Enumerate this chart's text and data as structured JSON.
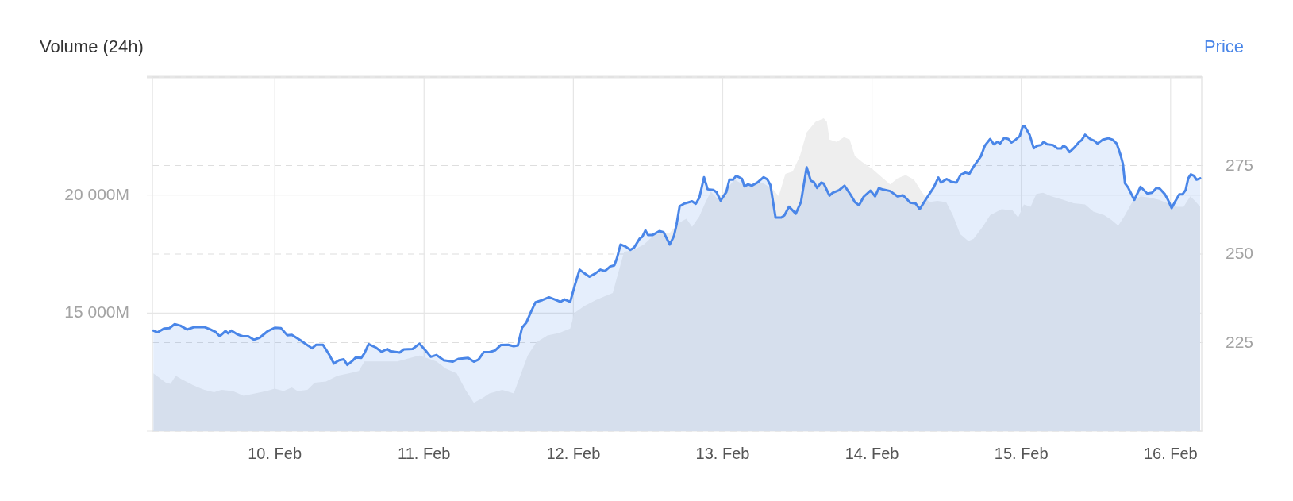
{
  "chart_data": {
    "type": "area",
    "ylabel": "Volume (24h)",
    "y2label": "Price",
    "xlim": [
      "--02-09T04:20",
      "--02-16T05:00"
    ],
    "xticks": [
      {
        "value": "--02-10",
        "label": "10. Feb"
      },
      {
        "value": "--02-11",
        "label": "11. Feb"
      },
      {
        "value": "--02-12",
        "label": "12. Feb"
      },
      {
        "value": "--02-13",
        "label": "13. Feb"
      },
      {
        "value": "--02-14",
        "label": "14. Feb"
      },
      {
        "value": "--02-15",
        "label": "15. Feb"
      },
      {
        "value": "--02-16",
        "label": "16. Feb"
      }
    ],
    "ylim": [
      10000,
      25000
    ],
    "yticks": [
      {
        "value": 10000,
        "label": null
      },
      {
        "value": 15000,
        "label": "15 000M"
      },
      {
        "value": 20000,
        "label": "20 000M"
      },
      {
        "value": 25000,
        "label": null
      }
    ],
    "y2lim": [
      200,
      300
    ],
    "y2ticks": [
      {
        "value": 200,
        "label": null
      },
      225,
      250,
      275,
      {
        "value": 300,
        "label": null
      }
    ],
    "grid": true,
    "series": [
      {
        "color": "#eeeeee",
        "x": [
          "--02-09T04:30",
          "--02-09T06:30",
          "--02-09T07:15",
          "--02-09T08:05",
          "--02-09T09:00",
          "--02-09T10:50",
          "--02-09T12:40",
          "--02-09T14:15",
          "--02-09T15:25",
          "--02-09T17:15",
          "--02-09T19:00",
          "--02-09T20:50",
          "--02-09T22:40",
          "--02-10T00:00",
          "--02-10T01:25",
          "--02-10T02:45",
          "--02-10T03:40",
          "--02-10T05:15",
          "--02-10T06:25",
          "--02-10T08:15",
          "--02-10T10:05",
          "--02-10T11:55",
          "--02-10T13:30",
          "--02-10T14:25",
          "--02-10T16:25",
          "--02-10T19:40",
          "--02-10T23:15",
          "--02-11T02:00",
          "--02-11T03:30",
          "--02-11T05:15",
          "--02-11T06:40",
          "--02-11T08:00",
          "--02-11T09:25",
          "--02-11T10:30",
          "--02-11T12:35",
          "--02-11T14:25",
          "--02-11T15:20",
          "--02-11T16:40",
          "--02-11T18:00",
          "--02-11T19:50",
          "--02-11T21:40",
          "--02-11T23:30",
          "--02-12T00:10",
          "--02-12T01:45",
          "--02-12T03:35",
          "--02-12T05:25",
          "--02-12T06:20",
          "--02-12T07:00",
          "--02-12T08:10",
          "--02-12T09:30",
          "--02-12T11:20",
          "--02-12T13:10",
          "--02-12T15:30",
          "--02-12T16:50",
          "--02-12T18:10",
          "--02-12T19:05",
          "--02-12T20:15",
          "--02-12T21:10",
          "--02-12T22:05",
          "--02-12T23:10",
          "--02-13T00:35",
          "--02-13T01:55",
          "--02-13T03:15",
          "--02-13T06:30",
          "--02-13T08:05",
          "--02-13T09:00",
          "--02-13T10:05",
          "--02-13T11:15",
          "--02-13T12:25",
          "--02-13T13:30",
          "--02-13T14:55",
          "--02-13T16:15",
          "--02-13T16:45",
          "--02-13T17:10",
          "--02-13T18:20",
          "--02-13T19:30",
          "--02-13T20:25",
          "--02-13T21:15",
          "--02-13T22:25",
          "--02-14T00:05",
          "--02-14T01:35",
          "--02-14T02:55",
          "--02-14T04:05",
          "--02-14T05:25",
          "--02-14T06:45",
          "--02-14T07:50",
          "--02-14T09:10",
          "--02-14T10:30",
          "--02-14T11:55",
          "--02-14T13:00",
          "--02-14T14:10",
          "--02-14T15:30",
          "--02-14T16:20",
          "--02-14T17:55",
          "--02-14T19:00",
          "--02-14T20:50",
          "--02-14T22:35",
          "--02-14T23:30",
          "--02-15T00:25",
          "--02-15T01:30",
          "--02-15T02:25",
          "--02-15T03:30",
          "--02-15T04:50",
          "--02-15T06:40",
          "--02-15T08:25",
          "--02-15T10:15",
          "--02-15T11:35",
          "--02-15T13:20",
          "--02-15T14:30",
          "--02-15T15:35",
          "--02-15T16:40",
          "--02-15T17:50",
          "--02-15T19:10",
          "--02-15T20:30",
          "--02-15T22:05",
          "--02-15T23:35",
          "--02-16T00:55",
          "--02-16T02:05",
          "--02-16T03:10",
          "--02-16T03:55",
          "--02-16T04:45"
        ],
        "values": [
          12450,
          12050,
          12000,
          12350,
          12200,
          11950,
          11750,
          11650,
          11750,
          11700,
          11500,
          11600,
          11700,
          11800,
          11700,
          11850,
          11700,
          11750,
          12050,
          12100,
          12350,
          12450,
          12550,
          12950,
          12950,
          12950,
          13200,
          12950,
          12650,
          12450,
          11750,
          11200,
          11400,
          11600,
          11750,
          11600,
          12250,
          13200,
          13750,
          14050,
          14150,
          14350,
          15000,
          15300,
          15550,
          15750,
          15850,
          16500,
          17600,
          17650,
          17900,
          18350,
          18400,
          18800,
          19000,
          18650,
          19100,
          19650,
          20150,
          19850,
          20250,
          20650,
          20450,
          20500,
          20250,
          19950,
          20900,
          21000,
          21650,
          22650,
          23100,
          23250,
          23100,
          22350,
          22250,
          22450,
          22350,
          21650,
          21400,
          21100,
          20750,
          20450,
          20700,
          20850,
          20650,
          20200,
          19700,
          19750,
          19700,
          19150,
          18350,
          18050,
          18150,
          18700,
          19150,
          19400,
          19350,
          19050,
          19600,
          19500,
          20050,
          20100,
          19950,
          19800,
          19650,
          19600,
          19300,
          19150,
          18950,
          18700,
          19150,
          19700,
          19950,
          19900,
          19800,
          19650,
          19500,
          19500,
          19950,
          19750,
          19500
        ]
      },
      {
        "axis": "y2",
        "color": "#4a86e8",
        "x": [
          "--02-09T04:30",
          "--02-09T05:10",
          "--02-09T06:15",
          "--02-09T07:05",
          "--02-09T07:55",
          "--02-09T08:50",
          "--02-09T09:55",
          "--02-09T11:05",
          "--02-09T12:40",
          "--02-09T13:35",
          "--02-09T14:30",
          "--02-09T15:10",
          "--02-09T16:05",
          "--02-09T16:30",
          "--02-09T17:00",
          "--02-09T17:55",
          "--02-09T18:50",
          "--02-09T19:45",
          "--02-09T20:40",
          "--02-09T21:35",
          "--02-09T22:55",
          "--02-10T00:00",
          "--02-10T01:00",
          "--02-10T02:00",
          "--02-10T02:45",
          "--02-10T04:10",
          "--02-10T04:50",
          "--02-10T06:00",
          "--02-10T06:40",
          "--02-10T07:45",
          "--02-10T08:45",
          "--02-10T09:30",
          "--02-10T10:20",
          "--02-10T11:05",
          "--02-10T11:40",
          "--02-10T12:35",
          "--02-10T13:00",
          "--02-10T13:55",
          "--02-10T14:25",
          "--02-10T15:05",
          "--02-10T16:15",
          "--02-10T17:10",
          "--02-10T18:05",
          "--02-10T18:30",
          "--02-10T20:05",
          "--02-10T20:45",
          "--02-10T22:10",
          "--02-10T23:15",
          "--02-11T00:25",
          "--02-11T01:05",
          "--02-11T02:00",
          "--02-11T03:10",
          "--02-11T04:35",
          "--02-11T05:30",
          "--02-11T07:05",
          "--02-11T08:00",
          "--02-11T08:45",
          "--02-11T09:35",
          "--02-11T10:30",
          "--02-11T11:25",
          "--02-11T12:20",
          "--02-11T13:30",
          "--02-11T14:25",
          "--02-11T15:05",
          "--02-11T15:45",
          "--02-11T16:25",
          "--02-11T17:10",
          "--02-11T17:55",
          "--02-11T19:00",
          "--02-11T20:05",
          "--02-11T21:00",
          "--02-11T21:55",
          "--02-11T22:35",
          "--02-11T23:30",
          "--02-12T00:10",
          "--02-12T01:00",
          "--02-12T01:45",
          "--02-12T02:35",
          "--02-12T03:35",
          "--02-12T04:20",
          "--02-12T05:05",
          "--02-12T05:55",
          "--02-12T06:35",
          "--02-12T07:00",
          "--02-12T07:35",
          "--02-12T08:25",
          "--02-12T09:10",
          "--02-12T09:45",
          "--02-12T10:40",
          "--02-12T11:05",
          "--02-12T11:35",
          "--02-12T12:00",
          "--02-12T12:45",
          "--02-12T13:50",
          "--02-12T14:30",
          "--02-12T15:30",
          "--02-12T16:10",
          "--02-12T16:35",
          "--02-12T17:05",
          "--02-12T17:45",
          "--02-12T19:05",
          "--02-12T19:40",
          "--02-12T20:15",
          "--02-12T21:00",
          "--02-12T21:35",
          "--02-12T22:30",
          "--02-12T23:00",
          "--02-12T23:40",
          "--02-13T00:35",
          "--02-13T01:05",
          "--02-13T01:40",
          "--02-13T02:10",
          "--02-13T03:05",
          "--02-13T03:30",
          "--02-13T04:05",
          "--02-13T04:40",
          "--02-13T05:35",
          "--02-13T06:35",
          "--02-13T07:10",
          "--02-13T07:40",
          "--02-13T08:30",
          "--02-13T09:25",
          "--02-13T09:55",
          "--02-13T10:40",
          "--02-13T11:45",
          "--02-13T12:35",
          "--02-13T13:30",
          "--02-13T14:10",
          "--02-13T14:40",
          "--02-13T15:10",
          "--02-13T15:50",
          "--02-13T16:15",
          "--02-13T17:10",
          "--02-13T17:40",
          "--02-13T18:45",
          "--02-13T19:35",
          "--02-13T20:35",
          "--02-13T21:15",
          "--02-13T21:55",
          "--02-13T22:40",
          "--02-13T23:45",
          "--02-14T00:30",
          "--02-14T01:05",
          "--02-14T01:50",
          "--02-14T02:55",
          "--02-14T04:05",
          "--02-14T05:00",
          "--02-14T06:10",
          "--02-14T07:00",
          "--02-14T07:40",
          "--02-14T08:45",
          "--02-14T09:55",
          "--02-14T10:40",
          "--02-14T11:05",
          "--02-14T12:00",
          "--02-14T12:45",
          "--02-14T13:35",
          "--02-14T14:15",
          "--02-14T15:00",
          "--02-14T15:40",
          "--02-14T16:20",
          "--02-14T17:30",
          "--02-14T18:10",
          "--02-14T19:00",
          "--02-14T19:35",
          "--02-14T20:10",
          "--02-14T20:35",
          "--02-14T21:15",
          "--02-14T21:55",
          "--02-14T22:25",
          "--02-14T23:05",
          "--02-14T23:45",
          "--02-15T00:15",
          "--02-15T00:35",
          "--02-15T01:20",
          "--02-15T02:00",
          "--02-15T02:35",
          "--02-15T03:10",
          "--02-15T03:35",
          "--02-15T04:10",
          "--02-15T05:05",
          "--02-15T05:50",
          "--02-15T06:25",
          "--02-15T06:45",
          "--02-15T07:10",
          "--02-15T07:45",
          "--02-15T08:25",
          "--02-15T09:20",
          "--02-15T09:40",
          "--02-15T10:15",
          "--02-15T11:05",
          "--02-15T11:45",
          "--02-15T12:15",
          "--02-15T13:05",
          "--02-15T14:00",
          "--02-15T14:40",
          "--02-15T15:20",
          "--02-15T15:55",
          "--02-15T16:20",
          "--02-15T16:40",
          "--02-15T17:10",
          "--02-15T18:10",
          "--02-15T19:10",
          "--02-15T20:15",
          "--02-15T21:00",
          "--02-15T21:45",
          "--02-15T22:15",
          "--02-15T23:05",
          "--02-15T23:35",
          "--02-16T00:10",
          "--02-16T00:45",
          "--02-16T01:25",
          "--02-16T01:55",
          "--02-16T02:25",
          "--02-16T02:50",
          "--02-16T03:15",
          "--02-16T03:45",
          "--02-16T04:10",
          "--02-16T04:45"
        ],
        "values": [
          228.4,
          227.9,
          229.0,
          229.1,
          230.2,
          229.8,
          228.7,
          229.4,
          229.4,
          228.8,
          228.0,
          226.8,
          228.3,
          227.6,
          228.4,
          227.4,
          226.8,
          226.8,
          225.8,
          226.4,
          228.3,
          229.2,
          229.1,
          227.1,
          227.2,
          225.6,
          224.8,
          223.4,
          224.4,
          224.4,
          221.6,
          219.1,
          220.0,
          220.3,
          218.7,
          220.0,
          220.8,
          220.7,
          222.0,
          224.6,
          223.6,
          222.4,
          223.2,
          222.6,
          222.2,
          223.1,
          223.2,
          224.7,
          222.4,
          221.0,
          221.5,
          220.0,
          219.6,
          220.4,
          220.7,
          219.6,
          220.2,
          222.3,
          222.3,
          222.8,
          224.3,
          224.4,
          224.0,
          224.2,
          229.2,
          230.6,
          233.6,
          236.4,
          237.0,
          237.8,
          237.2,
          236.5,
          237.2,
          236.5,
          240.8,
          245.6,
          244.6,
          243.6,
          244.6,
          245.6,
          245.2,
          246.5,
          246.8,
          248.8,
          252.7,
          252.1,
          251.2,
          251.8,
          254.4,
          254.9,
          256.7,
          255.4,
          255.4,
          256.5,
          256.2,
          252.7,
          255.1,
          258.3,
          263.5,
          264.2,
          264.9,
          264.2,
          265.9,
          271.7,
          268.3,
          268.1,
          267.5,
          265.1,
          267.5,
          271.0,
          271.0,
          272.1,
          271.3,
          269.1,
          269.7,
          269.3,
          270.2,
          271.7,
          271.1,
          269.5,
          260.3,
          260.3,
          260.9,
          263.4,
          261.4,
          264.7,
          274.5,
          270.7,
          270.3,
          268.7,
          270.2,
          269.9,
          266.5,
          267.3,
          268.1,
          269.3,
          266.7,
          264.7,
          263.8,
          266.2,
          267.9,
          266.3,
          268.6,
          268.2,
          267.8,
          266.3,
          266.6,
          264.5,
          264.3,
          262.7,
          265.7,
          268.8,
          271.6,
          270.2,
          271.2,
          270.4,
          270.2,
          272.4,
          273.0,
          272.7,
          274.7,
          277.6,
          280.7,
          282.5,
          281.0,
          281.7,
          281.2,
          282.8,
          282.5,
          281.5,
          282.3,
          283.3,
          286.2,
          286.0,
          283.7,
          279.9,
          280.6,
          280.8,
          281.7,
          281.0,
          280.8,
          279.8,
          279.8,
          280.6,
          280.2,
          278.8,
          279.9,
          281.7,
          282.1,
          283.7,
          282.5,
          282.0,
          281.2,
          282.3,
          282.7,
          282.3,
          281.2,
          278.2,
          275.5,
          270.0,
          268.8,
          265.3,
          269.0,
          267.1,
          267.3,
          268.7,
          268.5,
          266.9,
          265.3,
          263.0,
          264.9,
          266.9,
          266.9,
          268.1,
          271.4,
          272.5,
          272.1,
          271.0,
          271.4
        ]
      }
    ]
  }
}
